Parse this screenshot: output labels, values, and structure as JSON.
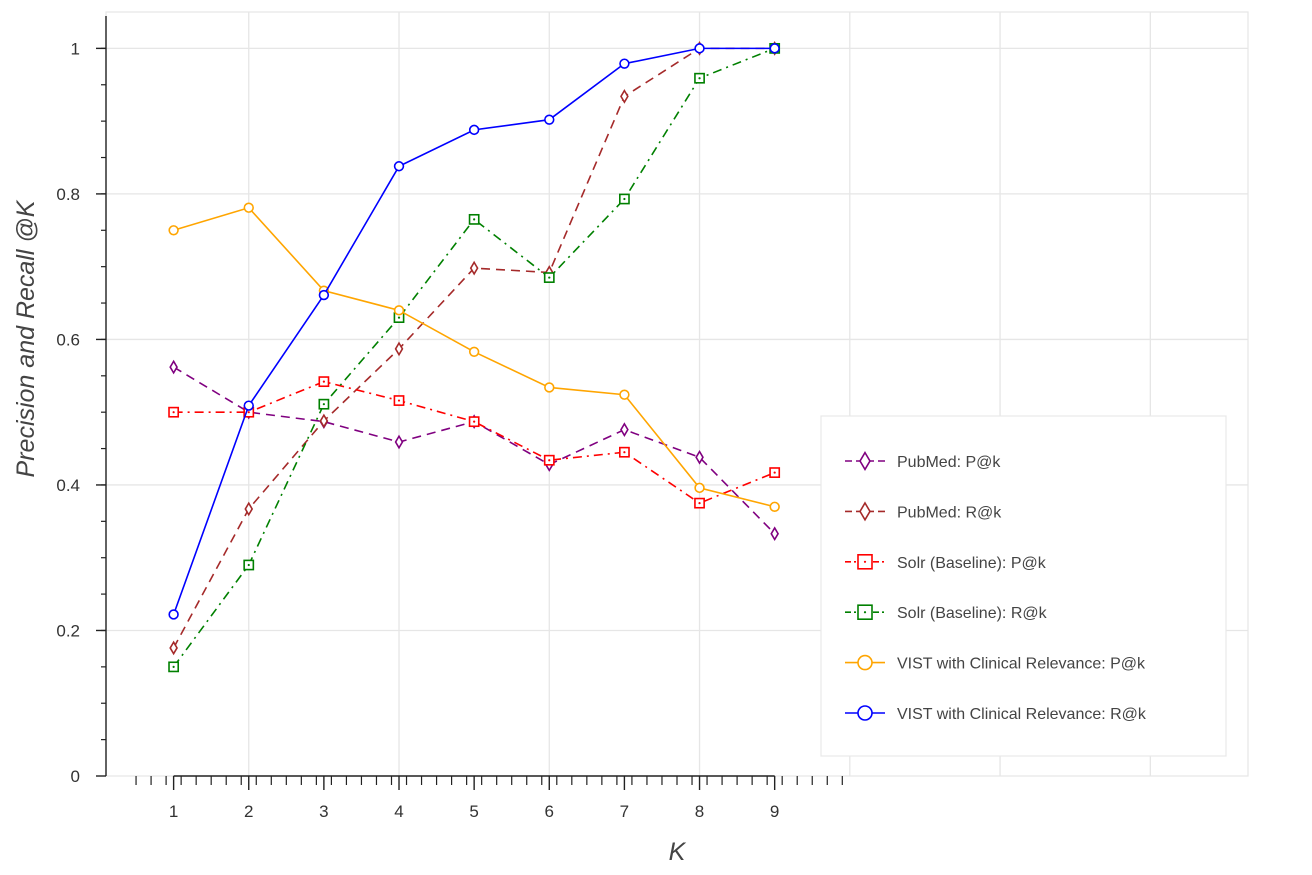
{
  "chart_data": {
    "type": "line",
    "title": "",
    "xlabel": "K",
    "ylabel": "Precision and Recall @K",
    "x": [
      1,
      2,
      3,
      4,
      5,
      6,
      7,
      8,
      9
    ],
    "xlim": [
      0.1,
      15.3
    ],
    "ylim": [
      0,
      1.05
    ],
    "xticks": [
      "1",
      "2",
      "3",
      "4",
      "5",
      "6",
      "7",
      "8",
      "9"
    ],
    "yticks": [
      {
        "value": 0,
        "label": "0"
      },
      {
        "value": 0.2,
        "label": "0.2"
      },
      {
        "value": 0.4,
        "label": "0.4"
      },
      {
        "value": 0.6,
        "label": "0.6"
      },
      {
        "value": 0.8,
        "label": "0.8"
      },
      {
        "value": 1,
        "label": "1"
      }
    ],
    "grid": true,
    "legend_position": "lower-right",
    "series": [
      {
        "name": "PubMed: P@k",
        "color": "#800080",
        "dash": "dashed",
        "marker": "diamond",
        "values": [
          0.562,
          0.5,
          0.487,
          0.459,
          0.487,
          0.428,
          0.476,
          0.438,
          0.333
        ]
      },
      {
        "name": "PubMed: R@k",
        "color": "#A52A2A",
        "dash": "dashed",
        "marker": "diamond",
        "values": [
          0.176,
          0.367,
          0.488,
          0.587,
          0.698,
          0.692,
          0.934,
          1.0,
          1.0
        ]
      },
      {
        "name": "Solr (Baseline): P@k",
        "color": "#FF0000",
        "dash": "dashdot",
        "marker": "square",
        "values": [
          0.5,
          0.5,
          0.542,
          0.516,
          0.487,
          0.434,
          0.445,
          0.375,
          0.417
        ]
      },
      {
        "name": "Solr (Baseline): R@k",
        "color": "#008000",
        "dash": "dashdot",
        "marker": "square",
        "values": [
          0.15,
          0.29,
          0.511,
          0.63,
          0.765,
          0.685,
          0.793,
          0.959,
          1.0
        ]
      },
      {
        "name": "VIST with Clinical Relevance: P@k",
        "color": "#FFA500",
        "dash": "solid",
        "marker": "circle",
        "values": [
          0.75,
          0.781,
          0.667,
          0.64,
          0.583,
          0.534,
          0.524,
          0.396,
          0.37
        ]
      },
      {
        "name": "VIST with Clinical Relevance: R@k",
        "color": "#0000FF",
        "dash": "solid",
        "marker": "circle",
        "values": [
          0.222,
          0.509,
          0.661,
          0.838,
          0.888,
          0.902,
          0.979,
          1.0,
          1.0
        ]
      }
    ]
  }
}
